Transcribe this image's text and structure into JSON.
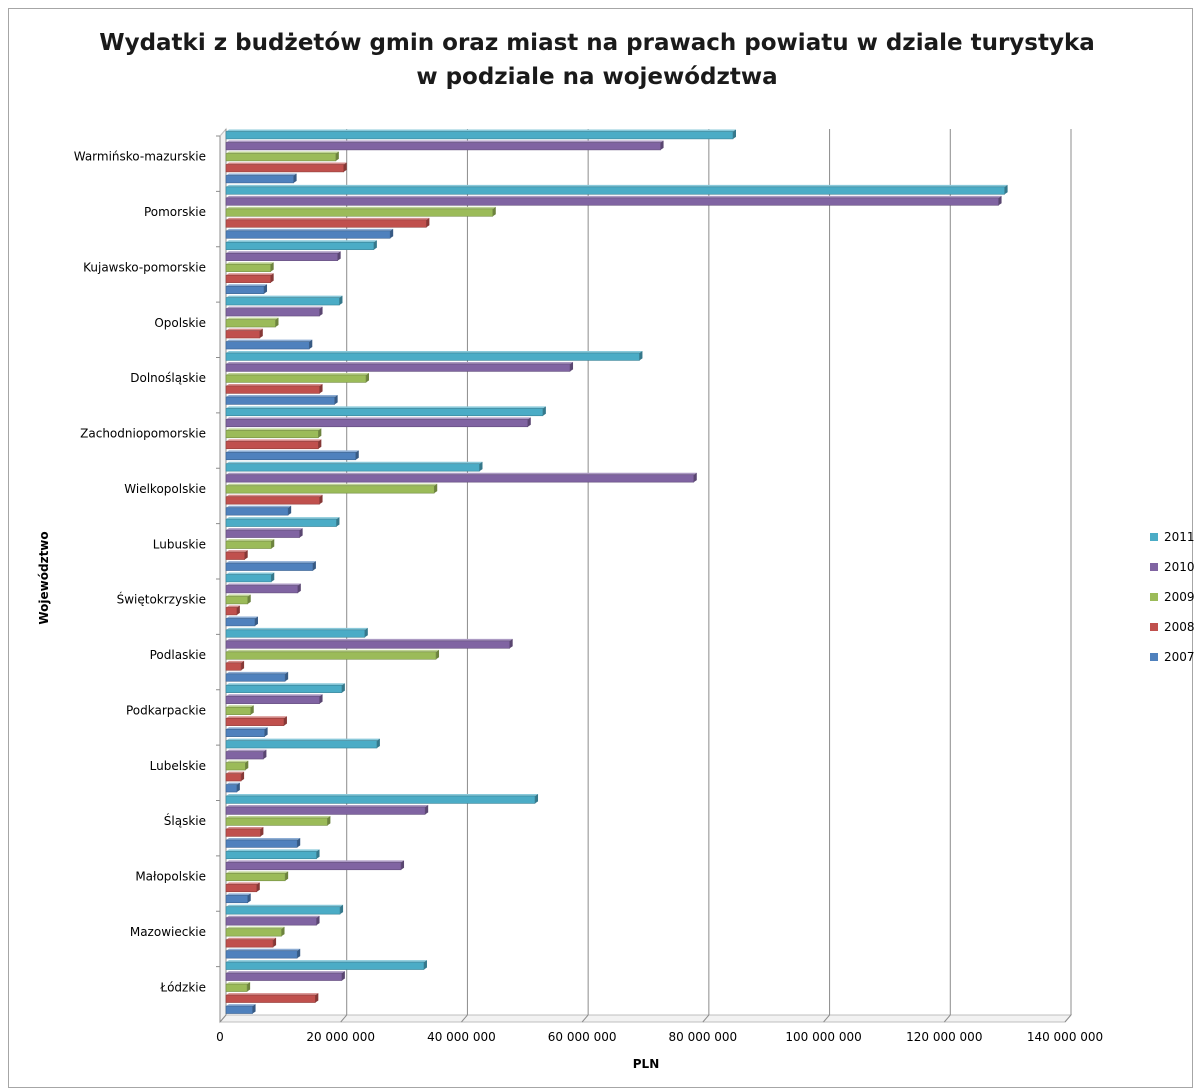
{
  "chart_data": {
    "type": "bar",
    "orientation": "horizontal",
    "title_lines": [
      "Wydatki z budżetów gmin oraz miast na prawach powiatu w dziale turystyka",
      "w podziale na województwa"
    ],
    "xlabel": "PLN",
    "ylabel": "Województwo",
    "xlim": [
      0,
      140000000
    ],
    "x_ticks": [
      0,
      20000000,
      40000000,
      60000000,
      80000000,
      100000000,
      120000000,
      140000000
    ],
    "x_tick_labels": [
      "0",
      "20 000 000",
      "40 000 000",
      "60 000 000",
      "80 000 000",
      "100 000 000",
      "120 000 000",
      "140 000 000"
    ],
    "grid": true,
    "legend_position": "right",
    "categories": [
      "Warmińsko-mazurskie",
      "Pomorskie",
      "Kujawsko-pomorskie",
      "Opolskie",
      "Dolnośląskie",
      "Zachodniopomorskie",
      "Wielkopolskie",
      "Lubuskie",
      "Świętokrzyskie",
      "Podlaskie",
      "Podkarpackie",
      "Lubelskie",
      "Śląskie",
      "Małopolskie",
      "Mazowieckie",
      "Łódzkie"
    ],
    "series": [
      {
        "name": "2011",
        "color": "#4bacc6",
        "values": [
          84000000,
          129000000,
          24500000,
          18800000,
          68500000,
          52500000,
          42000000,
          18300000,
          7500000,
          23000000,
          19200000,
          25000000,
          51200000,
          15000000,
          18900000,
          32800000
        ]
      },
      {
        "name": "2010",
        "color": "#8064a2",
        "values": [
          72000000,
          128000000,
          18500000,
          15500000,
          57000000,
          50000000,
          77500000,
          12200000,
          11900000,
          47000000,
          15500000,
          6200000,
          33000000,
          29000000,
          15000000,
          19200000
        ]
      },
      {
        "name": "2009",
        "color": "#9bbb59",
        "values": [
          18200000,
          44200000,
          7400000,
          8200000,
          23200000,
          15300000,
          34500000,
          7500000,
          3600000,
          34800000,
          4100000,
          3200000,
          16800000,
          9800000,
          9200000,
          3500000
        ]
      },
      {
        "name": "2008",
        "color": "#c0504d",
        "values": [
          19500000,
          33200000,
          7400000,
          5600000,
          15500000,
          15300000,
          15500000,
          3100000,
          1800000,
          2500000,
          9600000,
          2500000,
          5700000,
          5100000,
          7800000,
          14800000
        ]
      },
      {
        "name": "2007",
        "color": "#4f81bd",
        "values": [
          11200000,
          27200000,
          6300000,
          13800000,
          18000000,
          21500000,
          10300000,
          14400000,
          4800000,
          9800000,
          6400000,
          1800000,
          11800000,
          3600000,
          11800000,
          4400000
        ]
      }
    ]
  }
}
